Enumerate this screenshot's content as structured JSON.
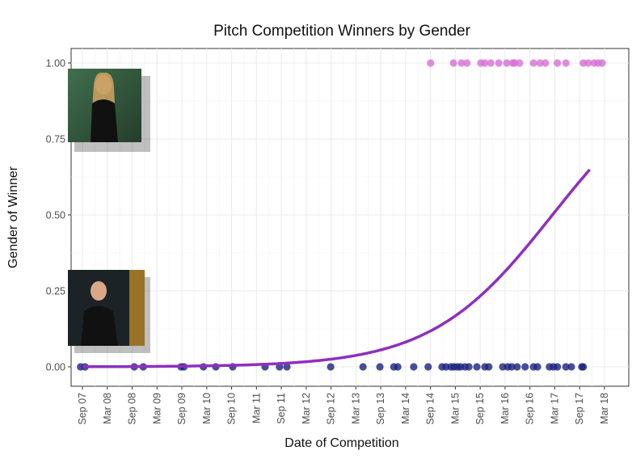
{
  "chart_data": {
    "type": "scatter",
    "title": "Pitch Competition Winners by Gender",
    "xlabel": "Date of Competition",
    "ylabel": "Gender of Winner",
    "xlim": [
      2007.3,
      2018.35
    ],
    "ylim": [
      -0.06,
      1.06
    ],
    "grid": true,
    "x_ticks": [
      {
        "value": 2007.667,
        "label": "Sep 07"
      },
      {
        "value": 2008.167,
        "label": "Mar 08"
      },
      {
        "value": 2008.667,
        "label": "Sep 08"
      },
      {
        "value": 2009.167,
        "label": "Mar 09"
      },
      {
        "value": 2009.667,
        "label": "Sep 09"
      },
      {
        "value": 2010.167,
        "label": "Mar 10"
      },
      {
        "value": 2010.667,
        "label": "Sep 10"
      },
      {
        "value": 2011.167,
        "label": "Mar 11"
      },
      {
        "value": 2011.667,
        "label": "Sep 11"
      },
      {
        "value": 2012.167,
        "label": "Mar 12"
      },
      {
        "value": 2012.667,
        "label": "Sep 12"
      },
      {
        "value": 2013.167,
        "label": "Mar 13"
      },
      {
        "value": 2013.667,
        "label": "Sep 13"
      },
      {
        "value": 2014.167,
        "label": "Mar 14"
      },
      {
        "value": 2014.667,
        "label": "Sep 14"
      },
      {
        "value": 2015.167,
        "label": "Mar 15"
      },
      {
        "value": 2015.667,
        "label": "Sep 15"
      },
      {
        "value": 2016.167,
        "label": "Mar 16"
      },
      {
        "value": 2016.667,
        "label": "Sep 16"
      },
      {
        "value": 2017.167,
        "label": "Mar 17"
      },
      {
        "value": 2017.667,
        "label": "Sep 17"
      },
      {
        "value": 2018.167,
        "label": "Mar 18"
      }
    ],
    "y_ticks": [
      {
        "value": 0,
        "label": "0.00"
      },
      {
        "value": 0.25,
        "label": "0.25"
      },
      {
        "value": 0.5,
        "label": "0.50"
      },
      {
        "value": 0.75,
        "label": "0.75"
      },
      {
        "value": 1,
        "label": "1.00"
      }
    ],
    "series": [
      {
        "name": "male",
        "y": 0,
        "color": "#1a237e",
        "x": [
          2007.63,
          2007.72,
          2008.71,
          2008.89,
          2009.65,
          2009.71,
          2010.1,
          2010.35,
          2010.69,
          2011.34,
          2011.63,
          2011.78,
          2012.66,
          2013.31,
          2013.65,
          2013.93,
          2014.01,
          2014.33,
          2014.62,
          2014.9,
          2014.98,
          2015.08,
          2015.14,
          2015.21,
          2015.27,
          2015.36,
          2015.44,
          2015.6,
          2015.76,
          2015.84,
          2016.12,
          2016.22,
          2016.3,
          2016.41,
          2016.57,
          2016.74,
          2016.82,
          2017.06,
          2017.14,
          2017.22,
          2017.39,
          2017.5,
          2017.71,
          2017.74
        ]
      },
      {
        "name": "female",
        "y": 1,
        "color": "#d76fd6",
        "x": [
          2014.67,
          2015.13,
          2015.29,
          2015.4,
          2015.68,
          2015.76,
          2015.88,
          2016.04,
          2016.2,
          2016.32,
          2016.36,
          2016.46,
          2016.74,
          2016.87,
          2016.98,
          2017.22,
          2017.39,
          2017.74,
          2017.84,
          2017.96,
          2018.04,
          2018.12
        ]
      }
    ],
    "fit": {
      "type": "logistic",
      "midpoint": 2017.12,
      "slope": 0.82,
      "x_range": [
        2007.67,
        2017.9
      ],
      "color": "#8e2fc0"
    }
  }
}
